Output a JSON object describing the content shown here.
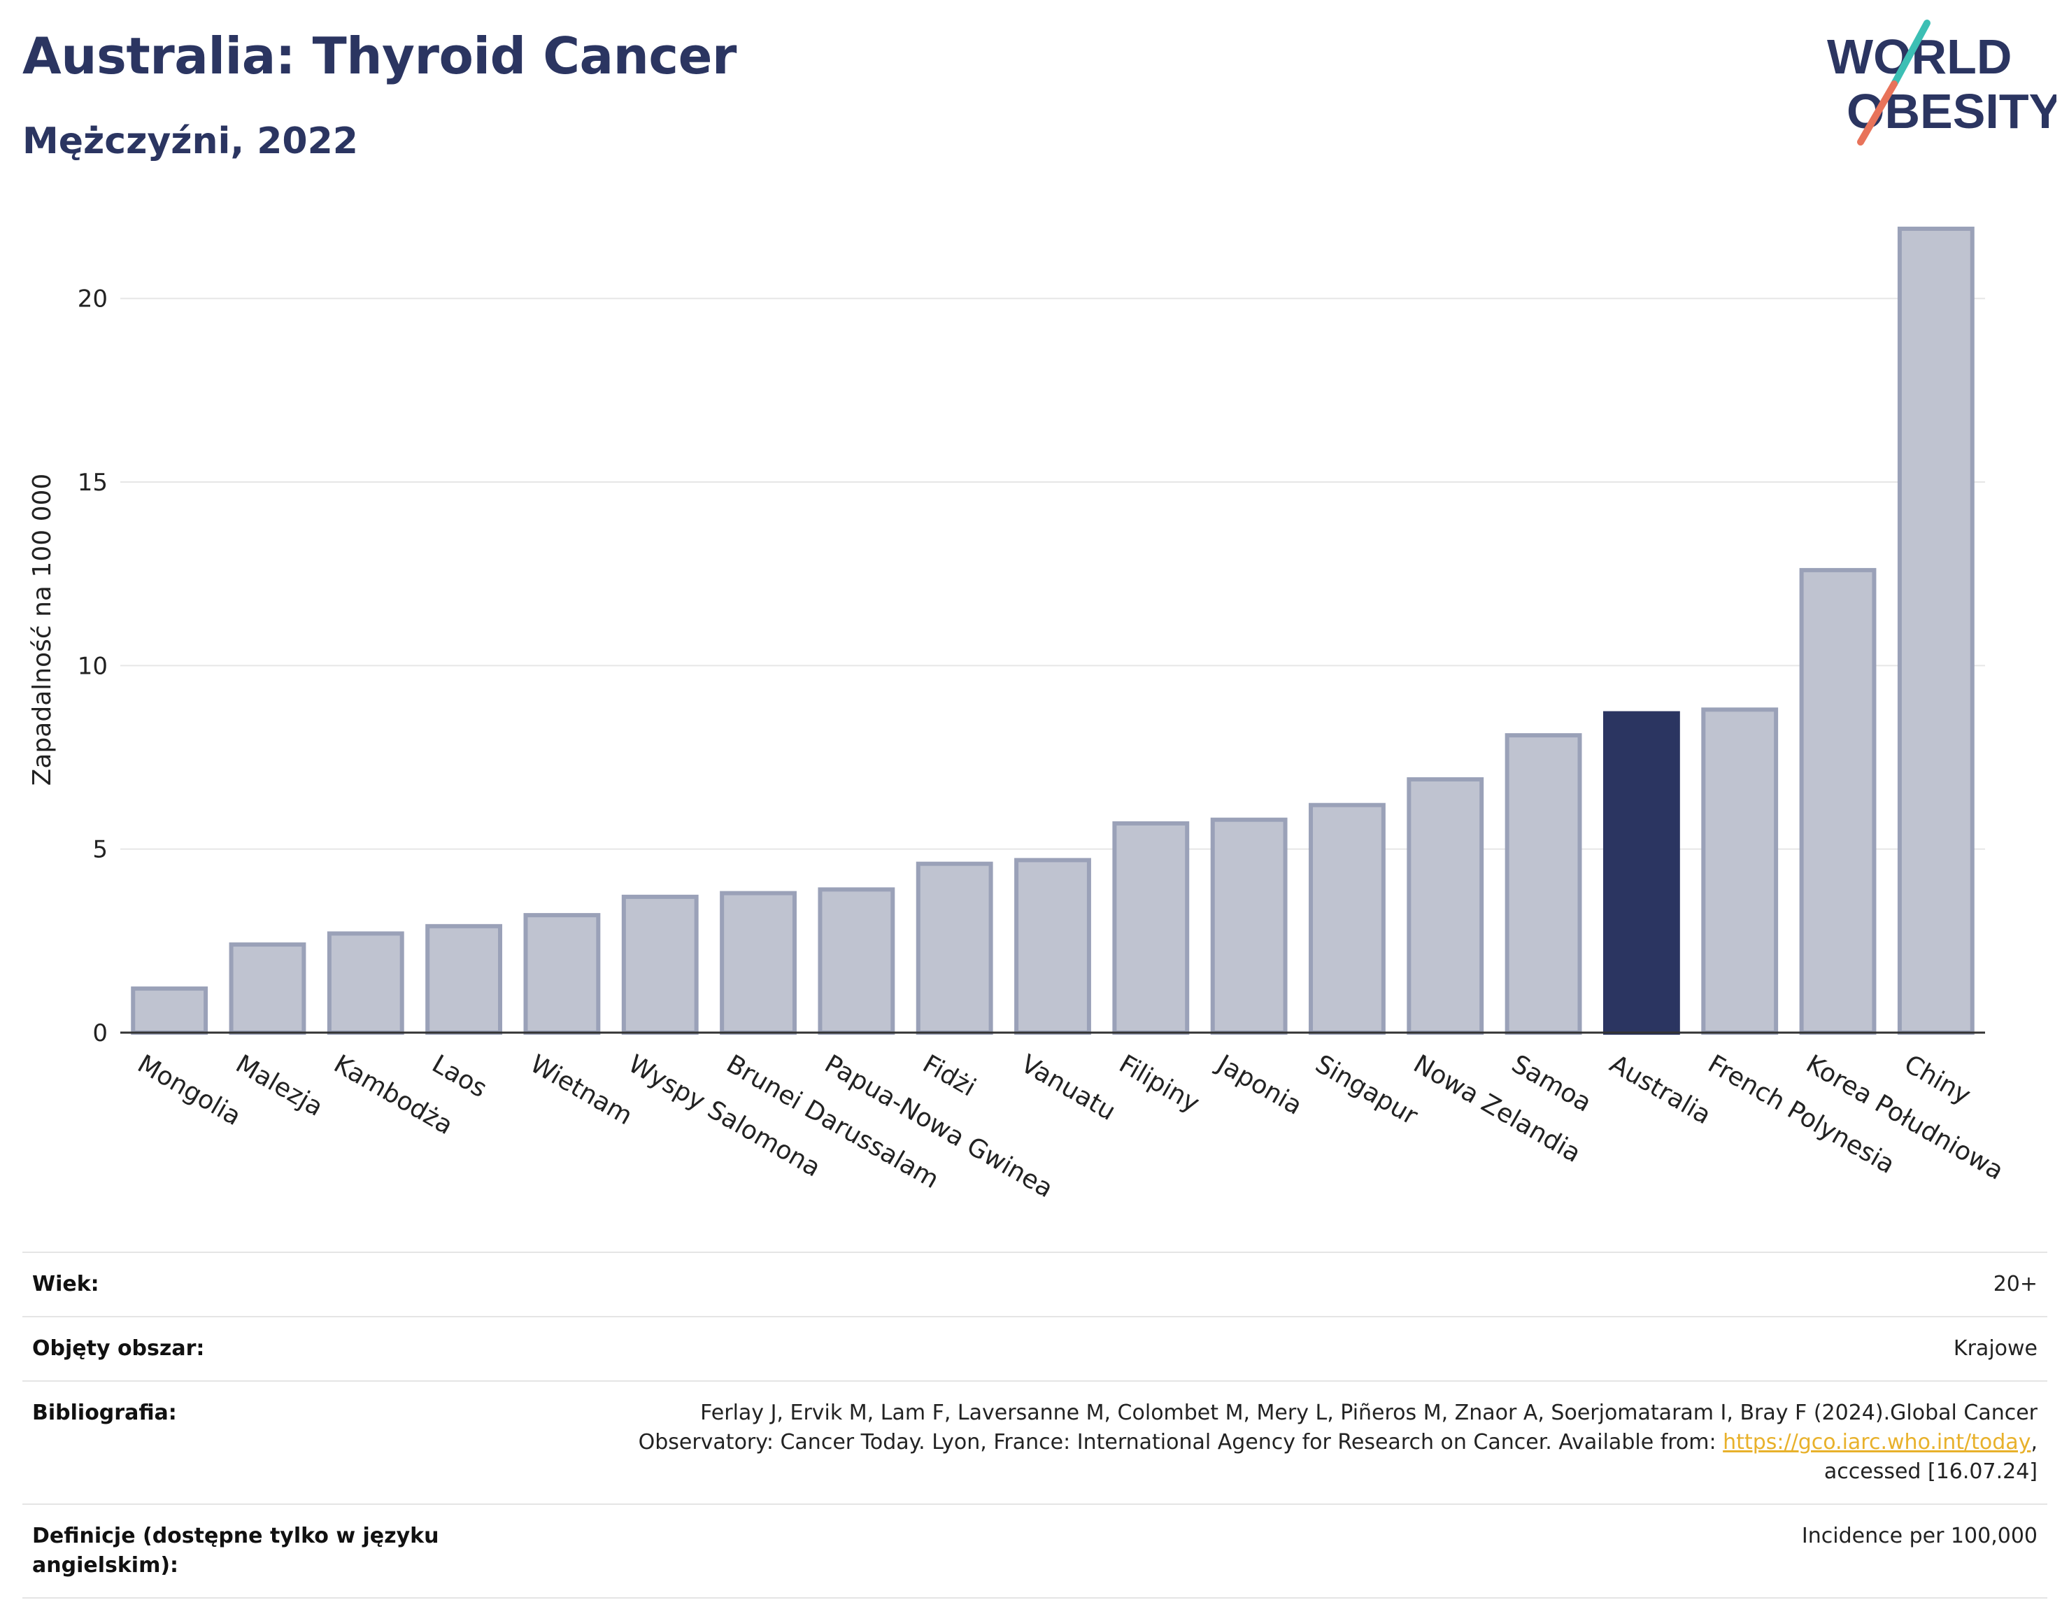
{
  "header": {
    "title": "Australia: Thyroid Cancer",
    "subtitle": "Mężczyźni, 2022"
  },
  "logo": {
    "line1": "WORLD",
    "line2": "OBESITY",
    "text_color": "#2b3561",
    "slash_colors": [
      "#3cbfb4",
      "#e8735a"
    ]
  },
  "colors": {
    "highlight": "#2b3561",
    "bar": "#bfc3d0",
    "bar_stroke": "#9aa1b8",
    "grid": "#e6e6e6",
    "axis": "#333333"
  },
  "chart_data": {
    "type": "bar",
    "ylabel": "Zapadalność na 100 000",
    "ylim": [
      0,
      22.7
    ],
    "yticks": [
      0,
      5,
      10,
      15,
      20
    ],
    "highlight": "Australia",
    "categories": [
      "Mongolia",
      "Malezja",
      "Kambodża",
      "Laos",
      "Wietnam",
      "Wyspy Salomona",
      "Brunei Darussalam",
      "Papua-Nowa Gwinea",
      "Fidżi",
      "Vanuatu",
      "Filipiny",
      "Japonia",
      "Singapur",
      "Nowa Zelandia",
      "Samoa",
      "Australia",
      "French Polynesia",
      "Korea Południowa",
      "Chiny"
    ],
    "values": [
      1.2,
      2.4,
      2.7,
      2.9,
      3.2,
      3.7,
      3.8,
      3.9,
      4.6,
      4.7,
      5.7,
      5.8,
      6.2,
      6.9,
      8.1,
      8.7,
      8.8,
      12.6,
      21.9
    ],
    "grid": true,
    "legend": "none"
  },
  "meta": {
    "rows": [
      {
        "label": "Wiek:",
        "value": "20+"
      },
      {
        "label": "Objęty obszar:",
        "value": "Krajowe"
      },
      {
        "label": "Bibliografia:",
        "value_line1": "Ferlay J, Ervik M, Lam F, Laversanne M, Colombet M, Mery L, Piñeros M, Znaor A, Soerjomataram I, Bray F (2024).Global Cancer",
        "value_line2_pre": "Observatory: Cancer Today. Lyon, France: International Agency for Research on Cancer. Available from: ",
        "link": "https://gco.iarc.who.int/today",
        "value_line2_post": ",",
        "value_line3": "accessed [16.07.24]"
      },
      {
        "label": "Definicje (dostępne tylko w języku angielskim):",
        "value": "Incidence per 100,000"
      }
    ]
  }
}
